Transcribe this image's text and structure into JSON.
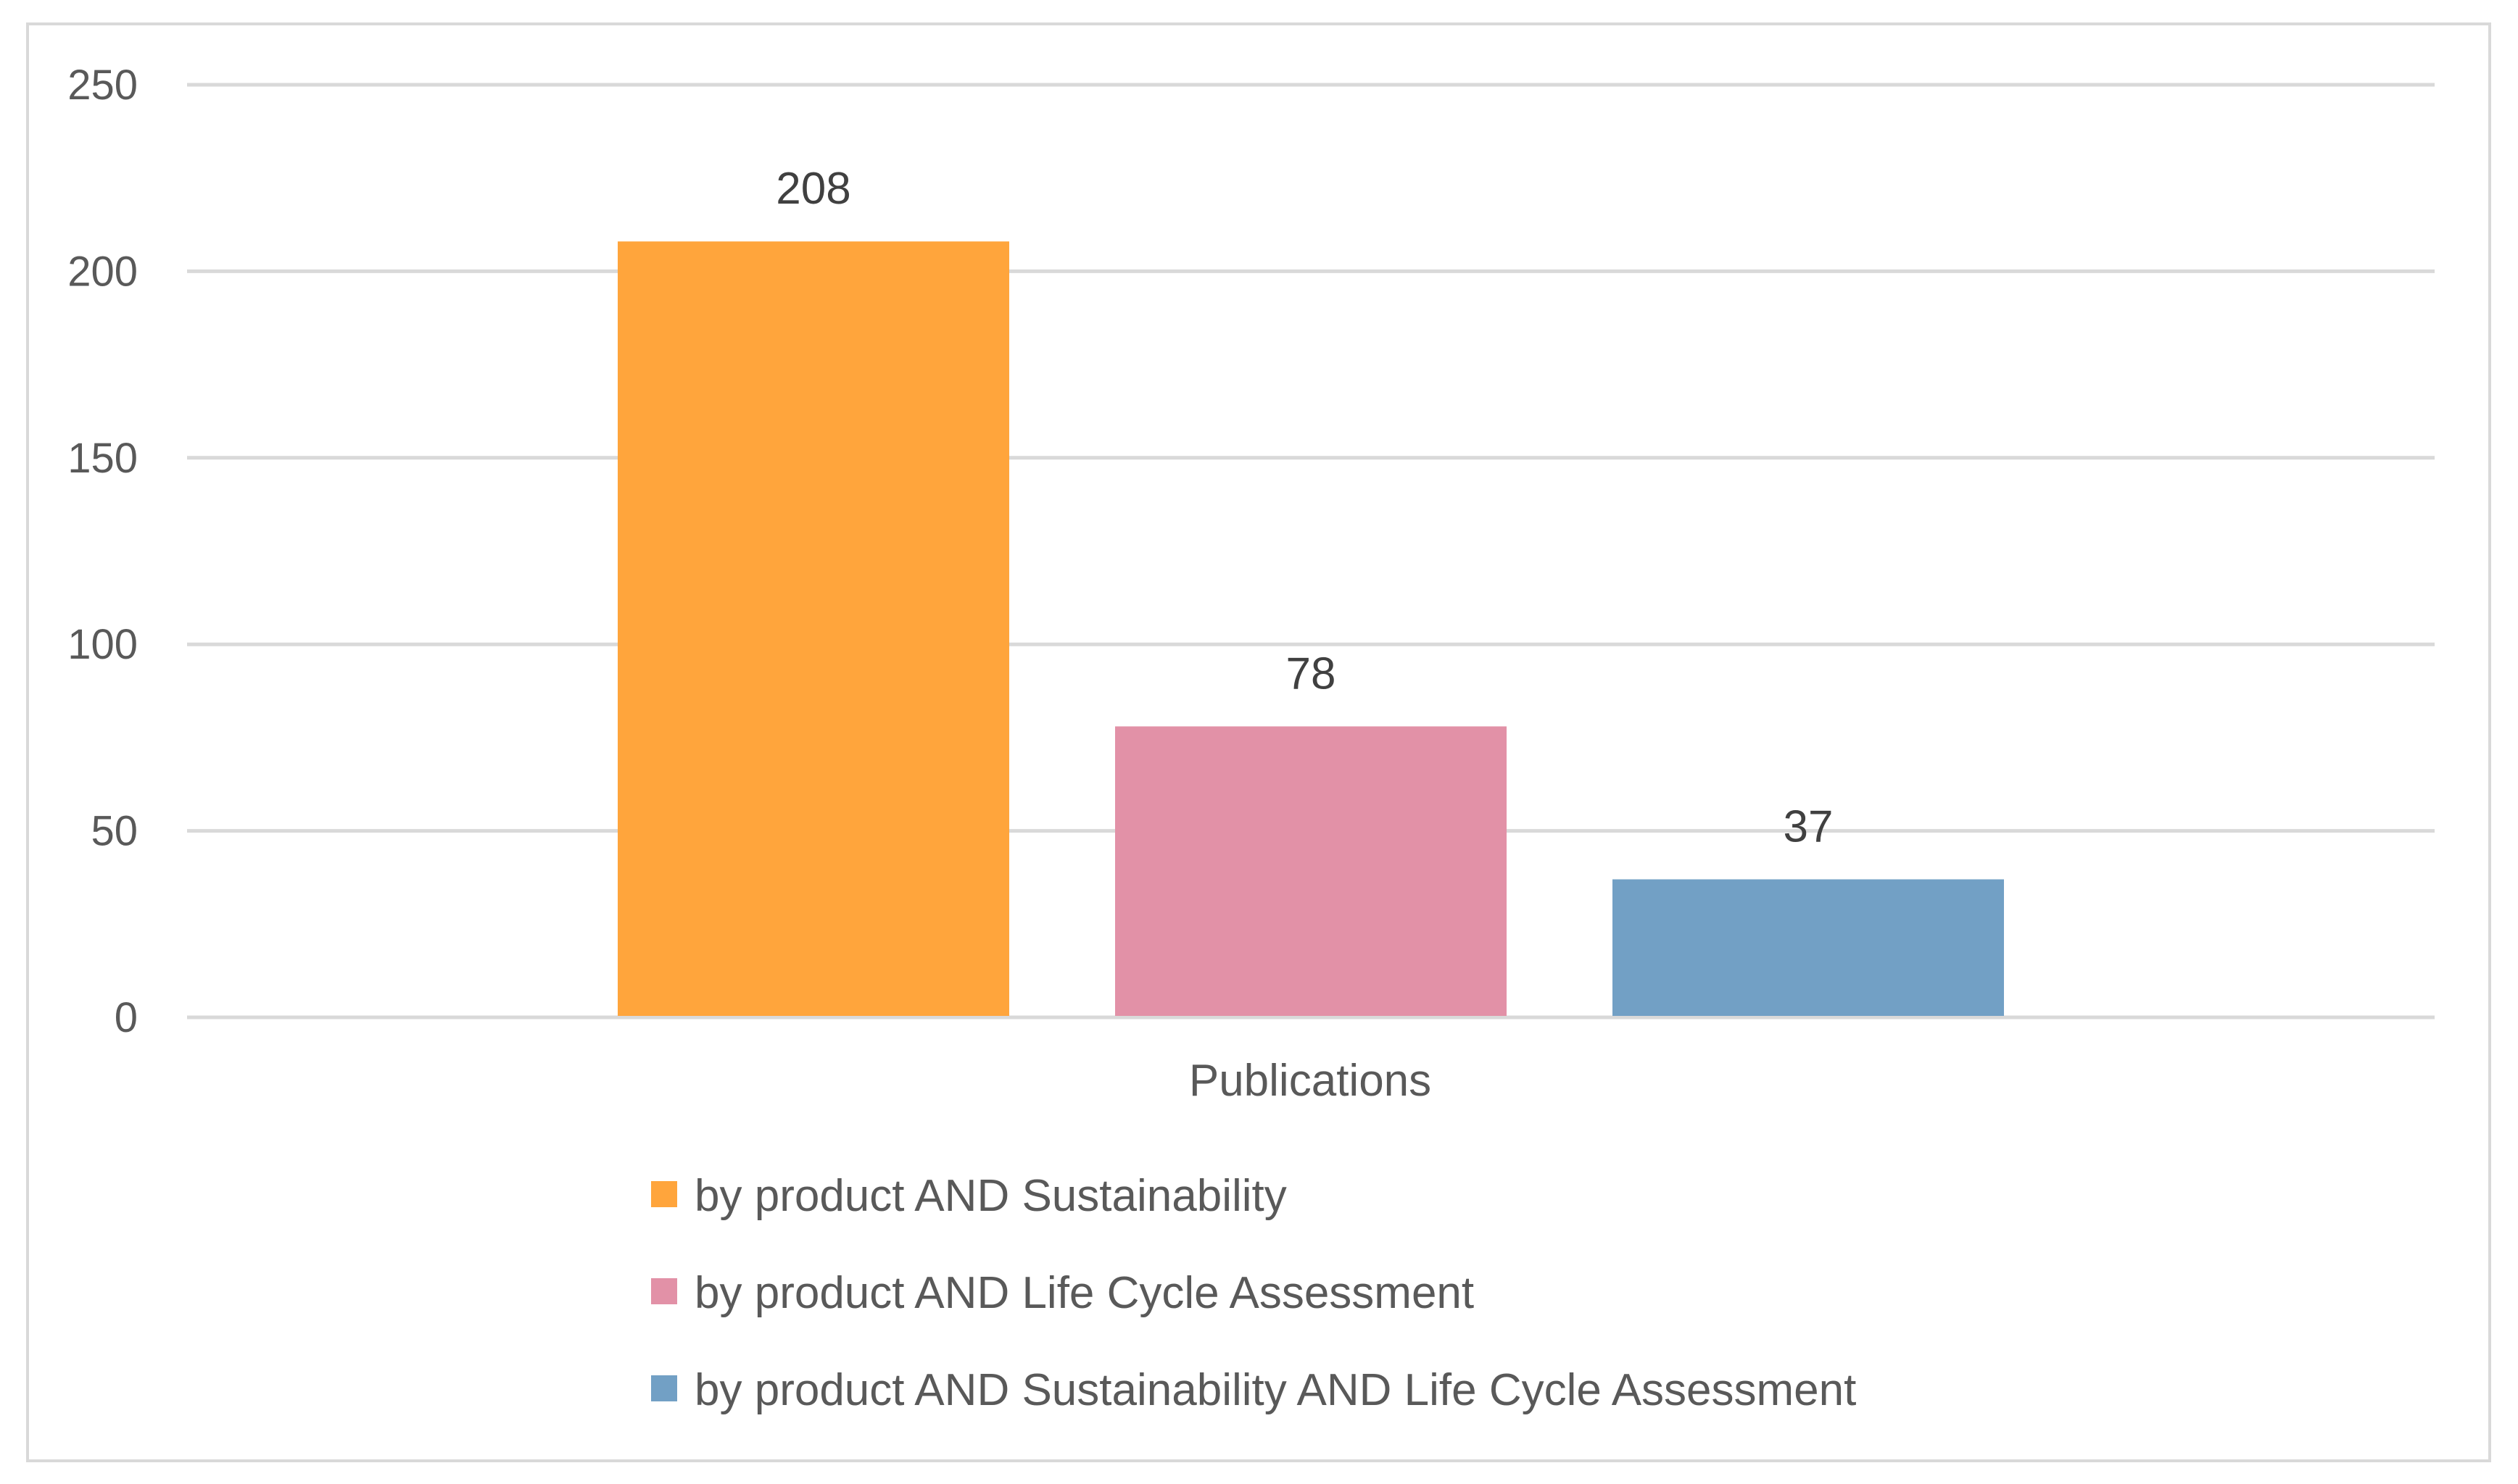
{
  "chart_data": {
    "type": "bar",
    "title": "",
    "xlabel": "",
    "ylabel": "",
    "categories": [
      "Publications"
    ],
    "series": [
      {
        "name": "by product AND Sustainability",
        "values": [
          208
        ],
        "color": "#FFA53C"
      },
      {
        "name": "by product AND Life Cycle Assessment",
        "values": [
          78
        ],
        "color": "#E291A7"
      },
      {
        "name": "by product AND Sustainability AND Life Cycle Assessment",
        "values": [
          37
        ],
        "color": "#72A0C5"
      }
    ],
    "ylim": [
      0,
      250
    ],
    "yticks": [
      0,
      50,
      100,
      150,
      200,
      250
    ],
    "grid": true,
    "legend_position": "bottom",
    "data_labels": true,
    "grid_color": "#d9d9d9"
  }
}
